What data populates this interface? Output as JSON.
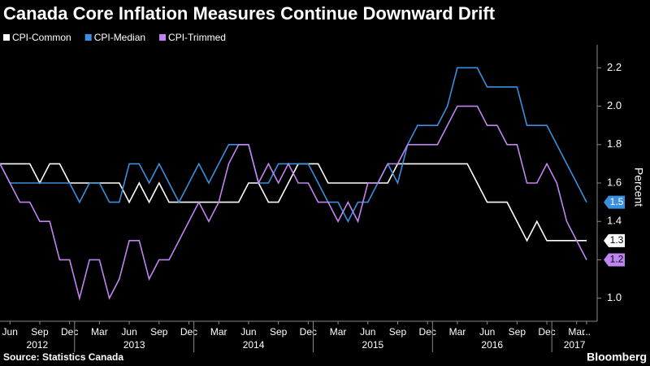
{
  "chart_data": {
    "type": "line",
    "title": "Canada Core Inflation Measures Continue Downward Drift",
    "y_label": "Percent",
    "source": "Source: Statistics Canada",
    "brand": "Bloomberg",
    "categories": [
      null,
      "Jun",
      null,
      null,
      "Sep",
      null,
      null,
      "Dec",
      null,
      null,
      "Mar",
      null,
      null,
      "Jun",
      null,
      null,
      "Sep",
      null,
      null,
      "Dec",
      null,
      null,
      "Mar",
      null,
      null,
      "Jun",
      null,
      null,
      "Sep",
      null,
      null,
      "Dec",
      null,
      null,
      "Mar",
      null,
      null,
      "Jun",
      null,
      null,
      "Sep",
      null,
      null,
      "Dec",
      null,
      null,
      "Mar",
      null,
      null,
      "Jun",
      null,
      null,
      "Sep",
      null,
      null,
      "Dec",
      null,
      null,
      "Mar",
      "..."
    ],
    "year_labels": [
      "2012",
      "2013",
      "2014",
      "2015",
      "2016",
      "2017"
    ],
    "series": [
      {
        "name": "CPI-Common",
        "color": "#ffffff",
        "values": [
          1.7,
          1.7,
          1.7,
          1.7,
          1.6,
          1.7,
          1.7,
          1.6,
          1.6,
          1.6,
          1.6,
          1.6,
          1.6,
          1.5,
          1.6,
          1.5,
          1.6,
          1.5,
          1.5,
          1.5,
          1.5,
          1.5,
          1.5,
          1.5,
          1.5,
          1.6,
          1.6,
          1.5,
          1.5,
          1.6,
          1.7,
          1.7,
          1.7,
          1.6,
          1.6,
          1.6,
          1.6,
          1.6,
          1.6,
          1.6,
          1.7,
          1.7,
          1.7,
          1.7,
          1.7,
          1.7,
          1.7,
          1.7,
          1.6,
          1.5,
          1.5,
          1.5,
          1.4,
          1.3,
          1.4,
          1.3,
          1.3,
          1.3,
          1.3,
          1.3
        ]
      },
      {
        "name": "CPI-Median",
        "color": "#3a8fde",
        "values": [
          1.7,
          1.6,
          1.6,
          1.6,
          1.6,
          1.6,
          1.6,
          1.6,
          1.5,
          1.6,
          1.6,
          1.5,
          1.5,
          1.7,
          1.7,
          1.6,
          1.7,
          1.6,
          1.5,
          1.6,
          1.7,
          1.6,
          1.7,
          1.8,
          1.8,
          1.8,
          1.6,
          1.6,
          1.7,
          1.7,
          1.7,
          1.7,
          1.6,
          1.5,
          1.5,
          1.4,
          1.5,
          1.5,
          1.6,
          1.7,
          1.6,
          1.8,
          1.9,
          1.9,
          1.9,
          2.0,
          2.2,
          2.2,
          2.2,
          2.1,
          2.1,
          2.1,
          2.1,
          1.9,
          1.9,
          1.9,
          1.8,
          1.7,
          1.6,
          1.5
        ]
      },
      {
        "name": "CPI-Trimmed",
        "color": "#c084f0",
        "values": [
          1.7,
          1.6,
          1.5,
          1.5,
          1.4,
          1.4,
          1.2,
          1.2,
          1.0,
          1.2,
          1.2,
          1.0,
          1.1,
          1.3,
          1.3,
          1.1,
          1.2,
          1.2,
          1.3,
          1.4,
          1.5,
          1.4,
          1.5,
          1.7,
          1.8,
          1.8,
          1.6,
          1.7,
          1.6,
          1.7,
          1.6,
          1.6,
          1.5,
          1.5,
          1.4,
          1.5,
          1.4,
          1.6,
          1.6,
          1.7,
          1.7,
          1.8,
          1.8,
          1.8,
          1.8,
          1.9,
          2.0,
          2.0,
          2.0,
          1.9,
          1.9,
          1.8,
          1.8,
          1.6,
          1.6,
          1.7,
          1.6,
          1.4,
          1.3,
          1.2
        ]
      }
    ],
    "ylim": [
      0.88,
      2.32
    ],
    "yticks": [
      {
        "value": 1.0,
        "label": "1.0"
      },
      1.2,
      1.4,
      1.6,
      1.8,
      {
        "value": 2.0,
        "label": "2.0"
      },
      2.2
    ]
  }
}
